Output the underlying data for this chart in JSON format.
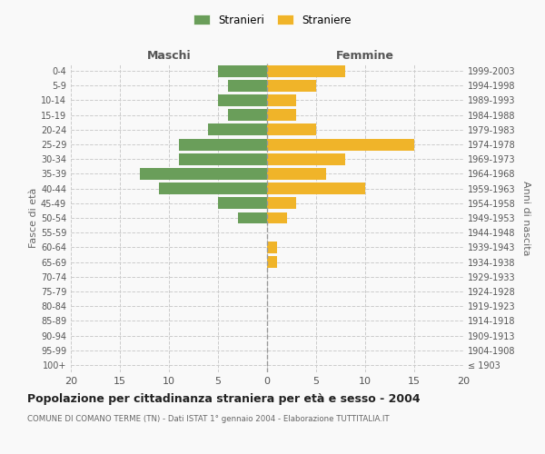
{
  "age_groups": [
    "100+",
    "95-99",
    "90-94",
    "85-89",
    "80-84",
    "75-79",
    "70-74",
    "65-69",
    "60-64",
    "55-59",
    "50-54",
    "45-49",
    "40-44",
    "35-39",
    "30-34",
    "25-29",
    "20-24",
    "15-19",
    "10-14",
    "5-9",
    "0-4"
  ],
  "birth_years": [
    "≤ 1903",
    "1904-1908",
    "1909-1913",
    "1914-1918",
    "1919-1923",
    "1924-1928",
    "1929-1933",
    "1934-1938",
    "1939-1943",
    "1944-1948",
    "1949-1953",
    "1954-1958",
    "1959-1963",
    "1964-1968",
    "1969-1973",
    "1974-1978",
    "1979-1983",
    "1984-1988",
    "1989-1993",
    "1994-1998",
    "1999-2003"
  ],
  "maschi": [
    0,
    0,
    0,
    0,
    0,
    0,
    0,
    0,
    0,
    0,
    3,
    5,
    11,
    13,
    9,
    9,
    6,
    4,
    5,
    4,
    5
  ],
  "femmine": [
    0,
    0,
    0,
    0,
    0,
    0,
    0,
    1,
    1,
    0,
    2,
    3,
    10,
    6,
    8,
    15,
    5,
    3,
    3,
    5,
    8
  ],
  "maschi_color": "#6a9e5a",
  "femmine_color": "#f0b429",
  "background_color": "#f9f9f9",
  "grid_color": "#cccccc",
  "title": "Popolazione per cittadinanza straniera per età e sesso - 2004",
  "subtitle": "COMUNE DI COMANO TERME (TN) - Dati ISTAT 1° gennaio 2004 - Elaborazione TUTTITALIA.IT",
  "xlabel_left": "Maschi",
  "xlabel_right": "Femmine",
  "ylabel_left": "Fasce di età",
  "ylabel_right": "Anni di nascita",
  "legend_maschi": "Stranieri",
  "legend_femmine": "Straniere",
  "xlim": 20,
  "bar_height": 0.8
}
